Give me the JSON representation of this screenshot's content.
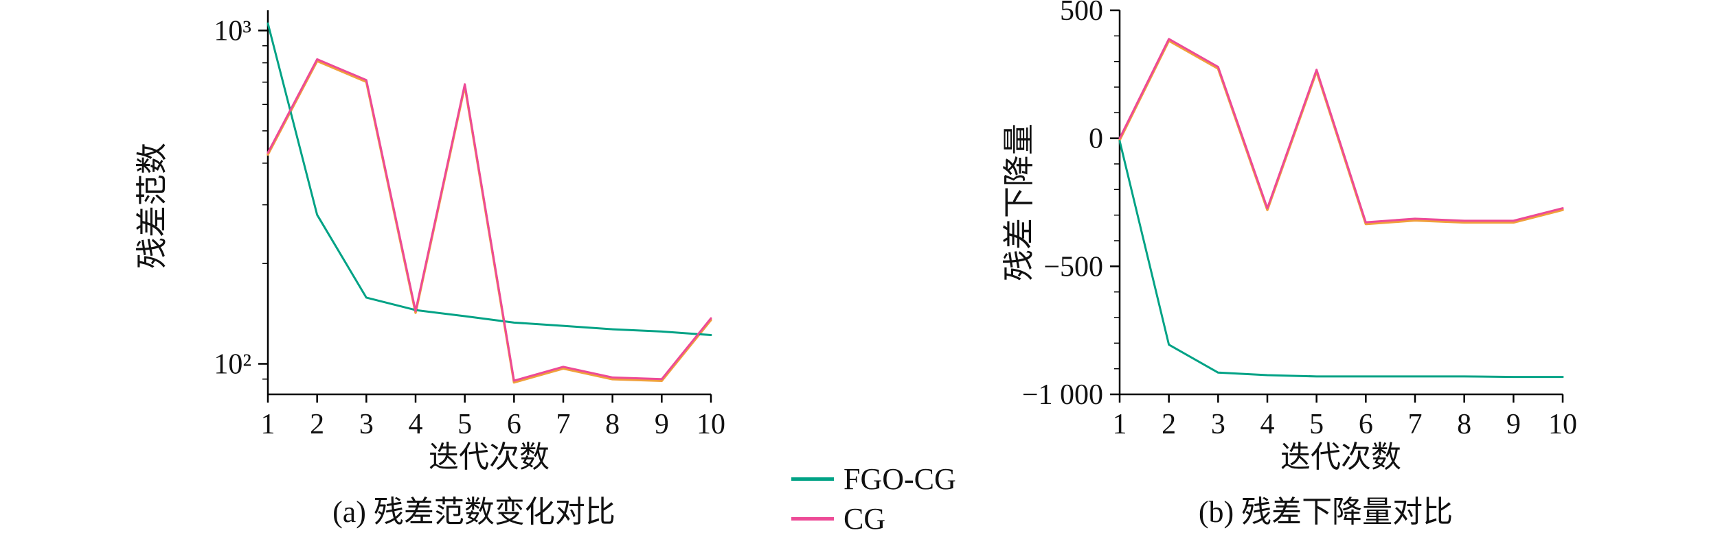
{
  "figure": {
    "background": "#ffffff",
    "text_color": "#111111",
    "axis_color": "#000000"
  },
  "legend": {
    "items": [
      {
        "label": "FGO-CG",
        "color": "#00a285"
      },
      {
        "label": "CG",
        "color": "#ed4a96"
      }
    ]
  },
  "chart_data": [
    {
      "type": "line",
      "caption": "(a) 残差范数变化对比",
      "xlabel": "迭代次数",
      "ylabel": "残差范数",
      "yscale": "log",
      "grid": false,
      "legend_position": "bottom-center-shared",
      "xlim": [
        1,
        10
      ],
      "ylim": [
        81,
        1150
      ],
      "xticks": [
        1,
        2,
        3,
        4,
        5,
        6,
        7,
        8,
        9,
        10
      ],
      "yticks": [
        {
          "value": 1000,
          "label": "10³"
        },
        {
          "value": 100,
          "label": "10²"
        }
      ],
      "yminor": [
        90,
        200,
        300,
        400,
        500,
        600,
        700,
        800,
        900
      ],
      "x": [
        1,
        2,
        3,
        4,
        5,
        6,
        7,
        8,
        9,
        10
      ],
      "series": [
        {
          "name": "FGO-CG",
          "color": "#00a285",
          "values": [
            1050,
            280,
            158,
            145,
            139,
            133,
            130,
            127,
            125,
            122
          ]
        },
        {
          "name": "CG",
          "color": "#ed4a96",
          "underlay_color": "#f0a03c",
          "values": [
            430,
            820,
            710,
            144,
            690,
            89,
            98,
            91,
            90,
            137
          ]
        }
      ]
    },
    {
      "type": "line",
      "caption": "(b) 残差下降量对比",
      "xlabel": "迭代次数",
      "ylabel": "残差下降量",
      "yscale": "linear",
      "grid": false,
      "legend_position": "bottom-center-shared",
      "xlim": [
        1,
        10
      ],
      "ylim": [
        -1000,
        500
      ],
      "xticks": [
        1,
        2,
        3,
        4,
        5,
        6,
        7,
        8,
        9,
        10
      ],
      "yticks": [
        {
          "value": 500,
          "label": "500"
        },
        {
          "value": 0,
          "label": "0"
        },
        {
          "value": -500,
          "label": "−500"
        },
        {
          "value": -1000,
          "label": "−1 000"
        }
      ],
      "yminor": [
        400,
        300,
        200,
        100,
        -100,
        -200,
        -300,
        -400,
        -600,
        -700,
        -800,
        -900
      ],
      "x": [
        1,
        2,
        3,
        4,
        5,
        6,
        7,
        8,
        9,
        10
      ],
      "series": [
        {
          "name": "FGO-CG",
          "color": "#00a285",
          "values": [
            -10,
            -806,
            -915,
            -925,
            -930,
            -930,
            -930,
            -930,
            -932,
            -932
          ]
        },
        {
          "name": "CG",
          "color": "#ed4a96",
          "underlay_color": "#f0a03c",
          "values": [
            0,
            388,
            279,
            -273,
            268,
            -328,
            -314,
            -322,
            -322,
            -273
          ]
        }
      ]
    }
  ]
}
